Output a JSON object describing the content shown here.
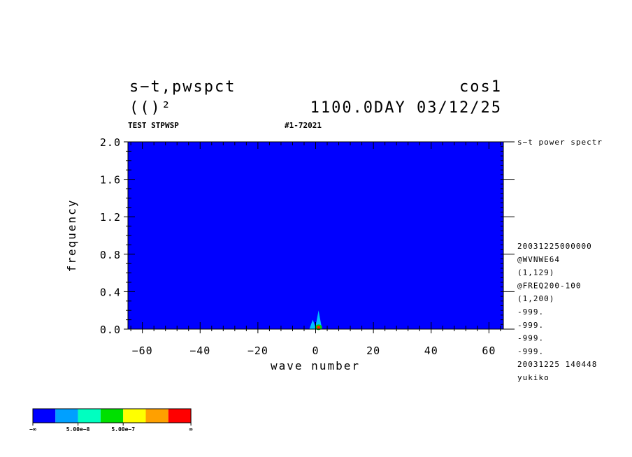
{
  "header": {
    "title_left": "s−t,pwspct",
    "title_right": "cos1",
    "unit": "(()²",
    "time_label": "1100.0DAY 03/12/25",
    "subtitle_left": "TEST STPWSP",
    "subtitle_mid": "#1-72021"
  },
  "chart_data": {
    "type": "heatmap",
    "title": "s−t,pwspct",
    "xlabel": "wave number",
    "ylabel": "frequency",
    "xlim": [
      -65,
      65
    ],
    "ylim": [
      0.0,
      2.0
    ],
    "x_ticks": [
      -60,
      -40,
      -20,
      0,
      20,
      40,
      60
    ],
    "x_tick_labels": [
      "−60",
      "−40",
      "−20",
      "0",
      "20",
      "40",
      "60"
    ],
    "y_ticks": [
      0.0,
      0.4,
      0.8,
      1.2,
      1.6,
      2.0
    ],
    "y_tick_labels": [
      "0.0",
      "0.4",
      "0.8",
      "1.2",
      "1.6",
      "2.0"
    ],
    "background_level_color": "#0000ff",
    "features": [
      {
        "wavenumber": 1,
        "frequency_top": 0.2,
        "level": "cyan"
      },
      {
        "wavenumber": -1,
        "frequency_top": 0.1,
        "level": "cyan"
      },
      {
        "wavenumber": 1,
        "frequency_top": 0.05,
        "level": "red"
      }
    ]
  },
  "sidebar": {
    "label": "s−t power spectr",
    "info": [
      "20031225000000",
      "@WVNWE64",
      "(1,129)",
      "@FREQ200-100",
      "(1,200)",
      "-999.",
      "-999.",
      "-999.",
      "-999.",
      "20031225 140448",
      "yukiko"
    ]
  },
  "colorbar": {
    "colors": [
      "#0000ff",
      "#00a0ff",
      "#00ffc0",
      "#00e000",
      "#ffff00",
      "#ffa000",
      "#ff0000"
    ],
    "labels": [
      "−∞",
      "5.00e−8",
      "5.00e−7",
      "∞"
    ]
  }
}
